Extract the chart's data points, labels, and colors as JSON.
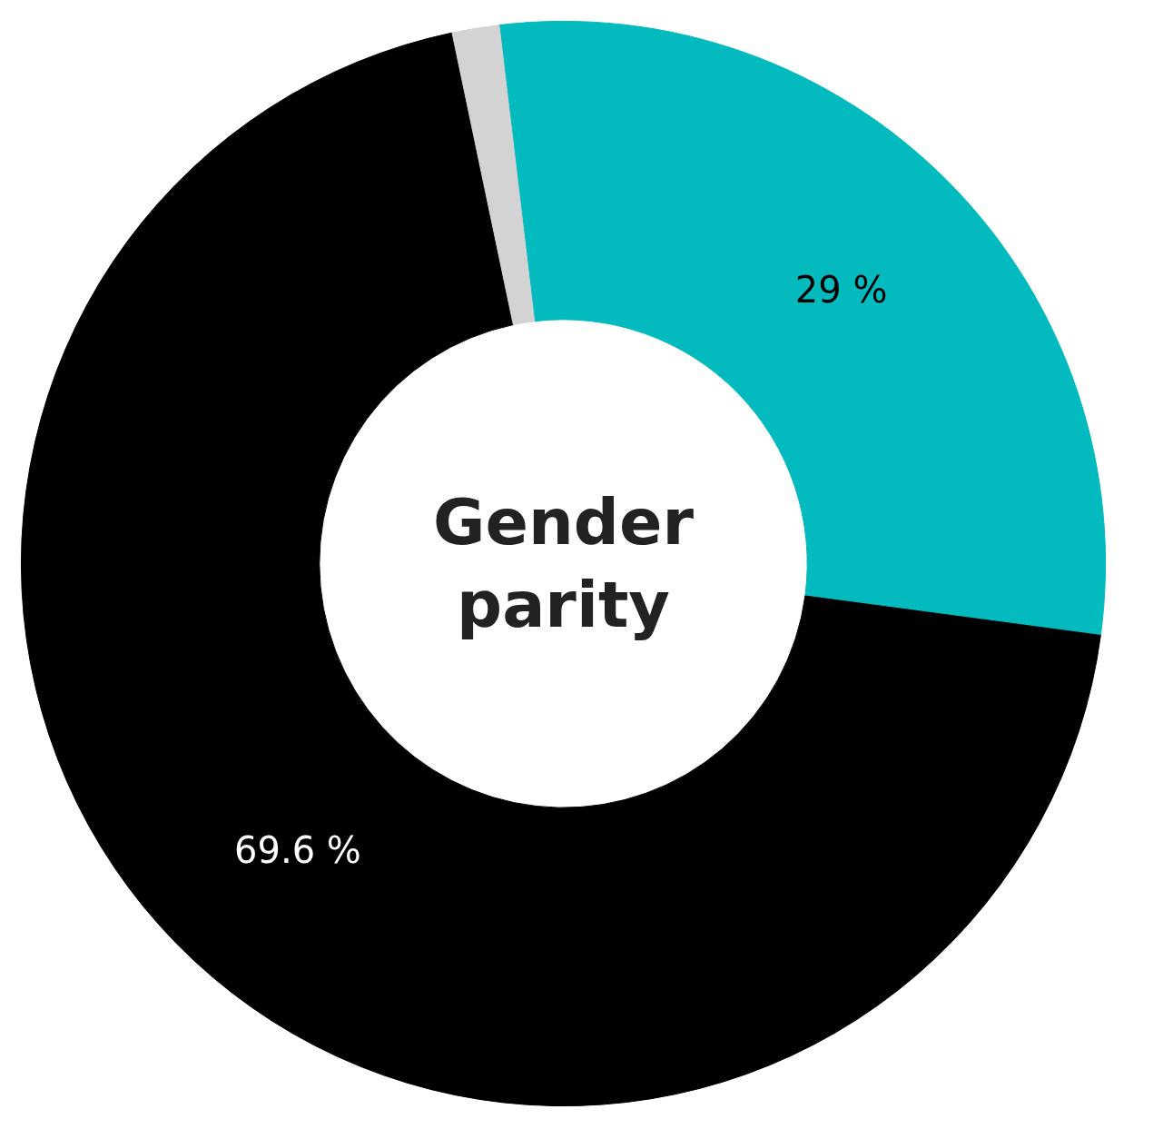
{
  "chart_data": {
    "type": "donut",
    "title": "Gender parity",
    "categories": [
      null,
      null,
      null
    ],
    "values": [
      29,
      69.6,
      1.4
    ],
    "colors": [
      "#03babe",
      "#000000",
      "#d3d3d3"
    ],
    "value_labels": [
      "29 %",
      "69.6 %",
      null
    ]
  }
}
